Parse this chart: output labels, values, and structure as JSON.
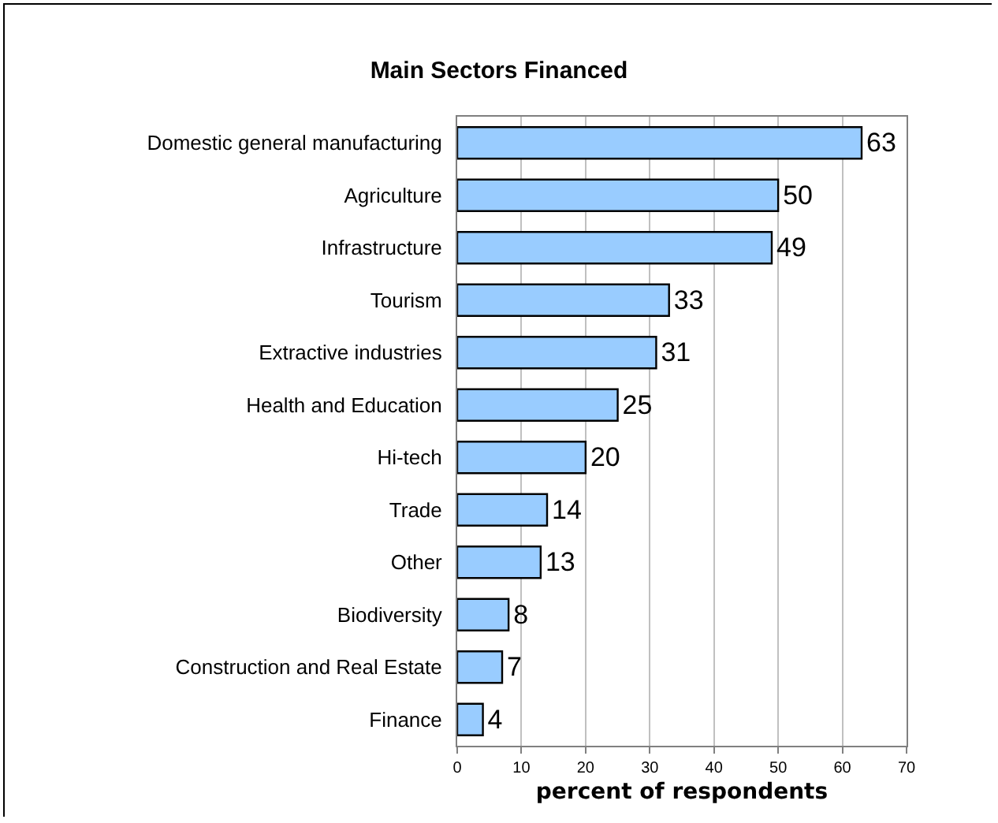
{
  "chart_data": {
    "type": "bar",
    "orientation": "horizontal",
    "title": "Main Sectors Financed",
    "xlabel": "percent of respondents",
    "categories": [
      "Domestic general manufacturing",
      "Agriculture",
      "Infrastructure",
      "Tourism",
      "Extractive industries",
      "Health and Education",
      "Hi-tech",
      "Trade",
      "Other",
      "Biodiversity",
      "Construction and Real Estate",
      "Finance"
    ],
    "values": [
      63,
      50,
      49,
      33,
      31,
      25,
      20,
      14,
      13,
      8,
      7,
      4
    ],
    "color": "#99ccff",
    "xlim": [
      0,
      70
    ],
    "xticks": [
      0,
      10,
      20,
      30,
      40,
      50,
      60,
      70
    ],
    "grid": "x",
    "data_labels": true
  }
}
